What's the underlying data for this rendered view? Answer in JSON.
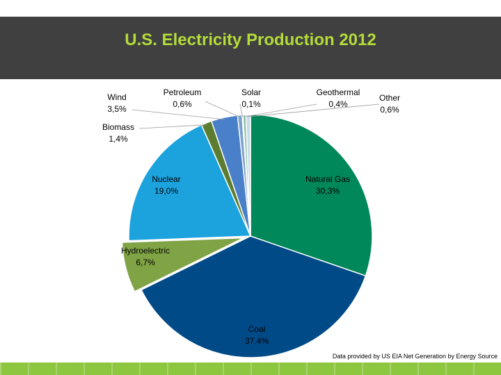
{
  "slide": {
    "source_note": "Data provided by US EIA Net Generation by Energy Source"
  },
  "chart_data": {
    "type": "pie",
    "title": "U.S. Electricity Production 2012",
    "slices": [
      {
        "name": "Natural Gas",
        "value": 30.3,
        "value_label": "30,3%",
        "color": "#00875a"
      },
      {
        "name": "Coal",
        "value": 37.4,
        "value_label": "37,4%",
        "color": "#004b87"
      },
      {
        "name": "Hydroelectric",
        "value": 6.7,
        "value_label": "6,7%",
        "color": "#7fa345"
      },
      {
        "name": "Nuclear",
        "value": 19.0,
        "value_label": "19,0%",
        "color": "#1ca2dd"
      },
      {
        "name": "Biomass",
        "value": 1.4,
        "value_label": "1,4%",
        "color": "#5c7c2f"
      },
      {
        "name": "Wind",
        "value": 3.5,
        "value_label": "3,5%",
        "color": "#4a7fc9"
      },
      {
        "name": "Petroleum",
        "value": 0.6,
        "value_label": "0,6%",
        "color": "#7aa0cf"
      },
      {
        "name": "Solar",
        "value": 0.1,
        "value_label": "0,1%",
        "color": "#b0c7a0"
      },
      {
        "name": "Geothermal",
        "value": 0.4,
        "value_label": "0,4%",
        "color": "#8fbfa9"
      },
      {
        "name": "Other",
        "value": 0.6,
        "value_label": "0,6%",
        "color": "#c4dde6"
      }
    ]
  }
}
